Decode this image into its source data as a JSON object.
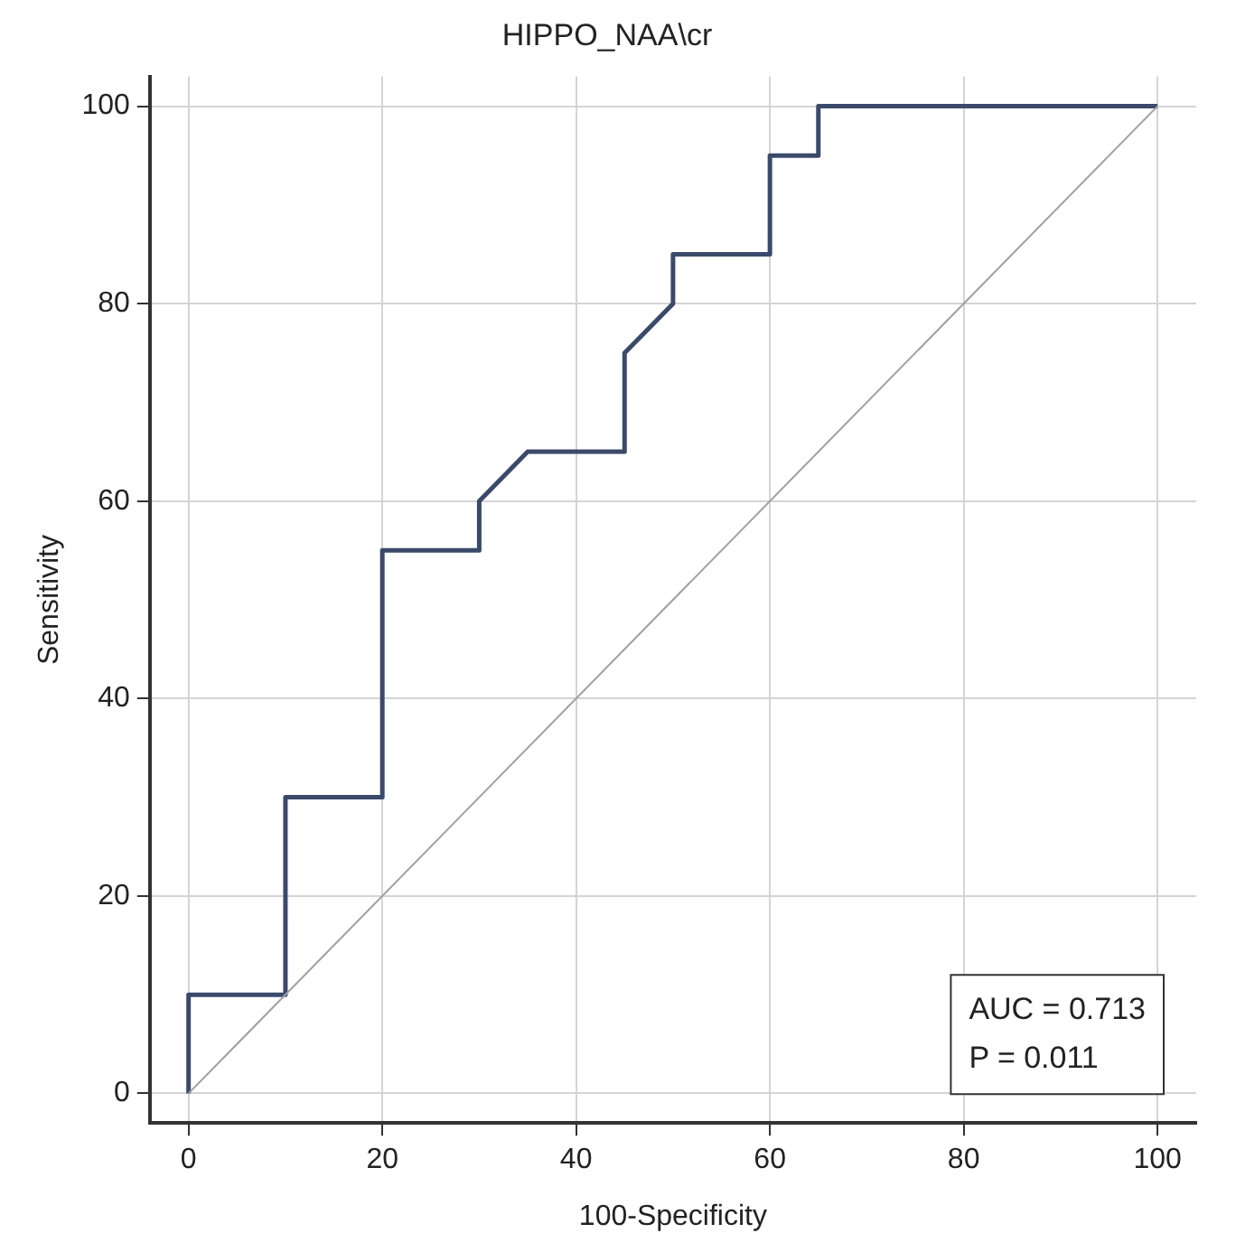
{
  "chart_data": {
    "type": "line",
    "title": "HIPPO_NAA\\cr",
    "xlabel": "100-Specificity",
    "ylabel": "Sensitivity",
    "xlim": [
      -4,
      104
    ],
    "ylim": [
      -3,
      103
    ],
    "xticks": [
      0,
      20,
      40,
      60,
      80,
      100
    ],
    "yticks": [
      0,
      20,
      40,
      60,
      80,
      100
    ],
    "grid": true,
    "legend": false,
    "marker": "none",
    "line_style": "solid",
    "series": [
      {
        "color": "#3b4a6b",
        "x": [
          0,
          0,
          10,
          10,
          20,
          20,
          30,
          30,
          35,
          45,
          45,
          50,
          50,
          60,
          60,
          65,
          65,
          100
        ],
        "values": [
          0,
          10,
          10,
          30,
          30,
          55,
          55,
          60,
          65,
          65,
          75,
          80,
          85,
          85,
          95,
          95,
          100,
          100
        ]
      },
      {
        "color": "#a0a0a0",
        "x": [
          0,
          100
        ],
        "values": [
          0,
          100
        ]
      }
    ],
    "annotations": [
      "AUC = 0.713",
      "P = 0.011"
    ]
  }
}
